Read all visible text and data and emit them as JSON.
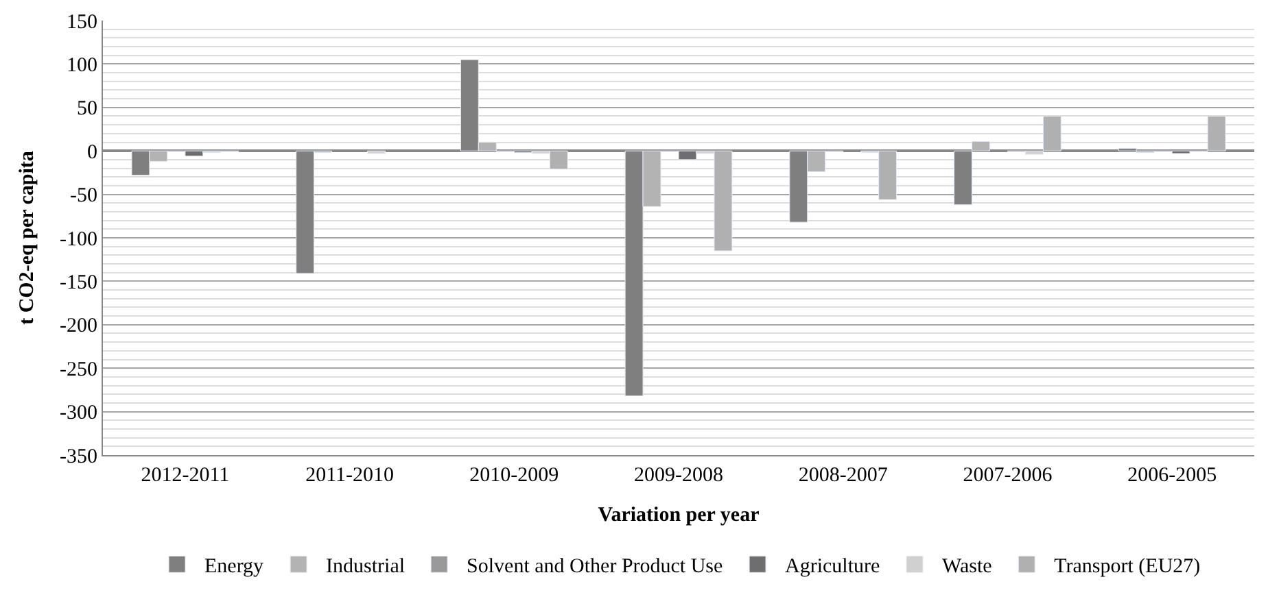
{
  "chart_data": {
    "type": "bar",
    "xlabel": "Variation per year",
    "ylabel": "t CO2-eq per capita",
    "categories": [
      "2012-2011",
      "2011-2010",
      "2010-2009",
      "2009-2008",
      "2008-2007",
      "2007-2006",
      "2006-2005"
    ],
    "series": [
      {
        "name": "Energy",
        "color": "#7f7f7f",
        "values": [
          -28,
          -141,
          105,
          -282,
          -82,
          -62,
          3
        ]
      },
      {
        "name": "Industrial",
        "color": "#b3b3b3",
        "values": [
          -12,
          -2,
          10,
          -64,
          -24,
          11,
          -2
        ]
      },
      {
        "name": "Solvent and Other Product Use",
        "color": "#999999",
        "values": [
          -1,
          null,
          -1,
          -1,
          -1,
          null,
          -1
        ]
      },
      {
        "name": "Agriculture",
        "color": "#6e6e6e",
        "values": [
          -6,
          null,
          -2,
          -10,
          null,
          -1,
          -3
        ]
      },
      {
        "name": "Waste",
        "color": "#d0d0d0",
        "values": [
          -2,
          -3,
          -3,
          -3,
          -2,
          -4,
          -1
        ]
      },
      {
        "name": "Transport (EU27)",
        "color": "#b0b0b0",
        "values": [
          -1,
          null,
          -21,
          -115,
          -56,
          40,
          40
        ]
      }
    ],
    "ylim": [
      -350,
      150
    ],
    "yticks": [
      -350,
      -300,
      -250,
      -200,
      -150,
      -100,
      -50,
      0,
      50,
      100,
      150
    ],
    "grid": "y",
    "legend": "bottom"
  }
}
